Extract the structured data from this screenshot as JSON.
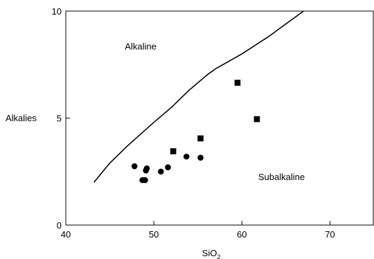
{
  "chart_data": {
    "type": "scatter",
    "title": "",
    "xlabel": "SiO",
    "xlabel_subscript": "2",
    "ylabel": "Alkalies",
    "xlim": [
      40,
      75
    ],
    "ylim": [
      0,
      10
    ],
    "x_ticks": [
      40,
      50,
      60,
      70
    ],
    "y_ticks": [
      0,
      5,
      10
    ],
    "grid": false,
    "region_labels": [
      {
        "text": "Alkaline",
        "x": 48.5,
        "y": 8.2
      },
      {
        "text": "Subalkaline",
        "x": 64.5,
        "y": 2.1
      }
    ],
    "boundary_line": {
      "x": [
        43.2,
        44.0,
        45.0,
        47.0,
        50.0,
        52.0,
        54.0,
        56.0,
        57.0,
        60.0,
        63.0,
        65.0,
        67.0
      ],
      "y": [
        2.0,
        2.4,
        2.9,
        3.7,
        4.8,
        5.5,
        6.3,
        7.0,
        7.3,
        8.0,
        8.8,
        9.4,
        10.0
      ]
    },
    "series": [
      {
        "marker": "circle",
        "x": [
          47.8,
          48.7,
          49.0,
          49.1,
          49.2,
          50.8,
          51.6,
          53.7,
          55.3
        ],
        "y": [
          2.75,
          2.1,
          2.1,
          2.55,
          2.65,
          2.5,
          2.7,
          3.2,
          3.15
        ]
      },
      {
        "marker": "square",
        "x": [
          52.2,
          55.3,
          59.5,
          61.7
        ],
        "y": [
          3.45,
          4.05,
          6.65,
          4.95
        ]
      }
    ]
  }
}
